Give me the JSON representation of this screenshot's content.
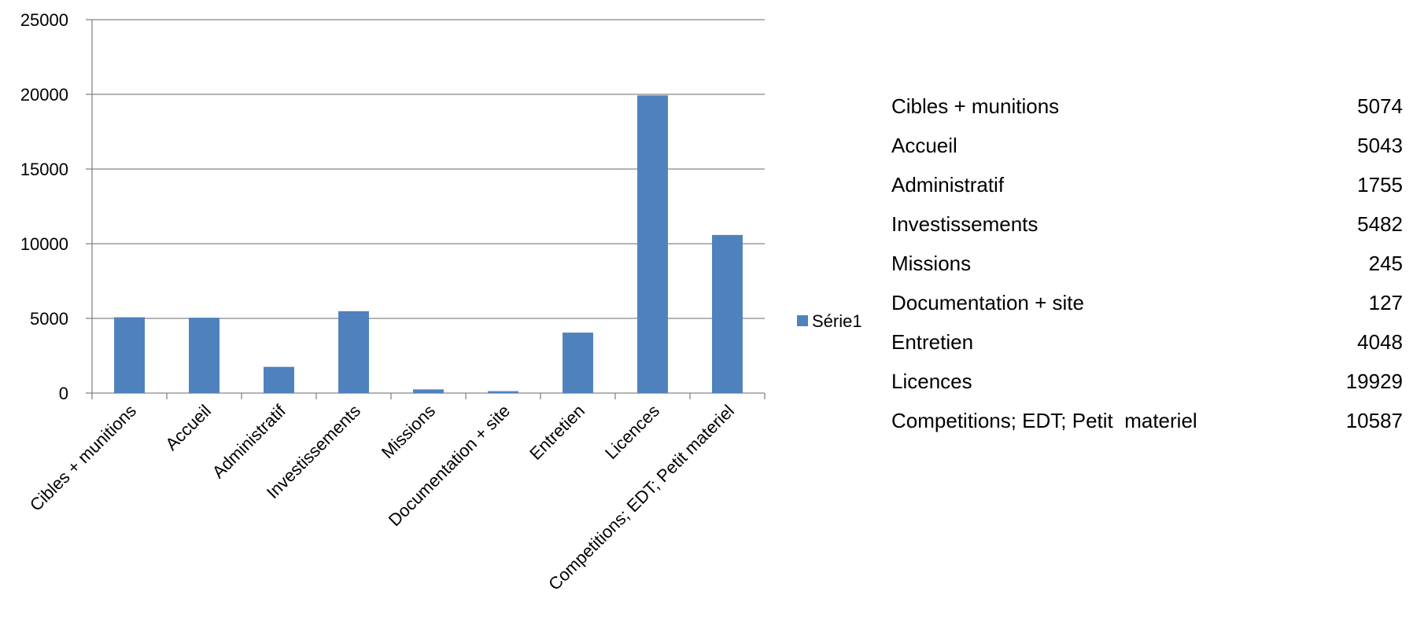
{
  "chart_data": {
    "type": "bar",
    "categories": [
      "Cibles + munitions",
      "Accueil",
      "Administratif",
      "Investissements",
      "Missions",
      "Documentation + site",
      "Entretien",
      "Licences",
      "Competitions; EDT; Petit  materiel"
    ],
    "series": [
      {
        "name": "Série1",
        "values": [
          5074,
          5043,
          1755,
          5482,
          245,
          127,
          4048,
          19929,
          10587
        ]
      }
    ],
    "ylim": [
      0,
      25000
    ],
    "yticks": [
      0,
      5000,
      10000,
      15000,
      20000,
      25000
    ],
    "grid": true,
    "legend": "right",
    "color": "#4f81bd"
  },
  "table": {
    "rows": [
      {
        "label": "Cibles + munitions",
        "value": "5074"
      },
      {
        "label": "Accueil",
        "value": "5043"
      },
      {
        "label": "Administratif",
        "value": "1755"
      },
      {
        "label": "Investissements",
        "value": "5482"
      },
      {
        "label": "Missions",
        "value": "245"
      },
      {
        "label": "Documentation + site",
        "value": "127"
      },
      {
        "label": "Entretien",
        "value": "4048"
      },
      {
        "label": "Licences",
        "value": "19929"
      },
      {
        "label": "Competitions; EDT; Petit  materiel",
        "value": "10587"
      }
    ]
  }
}
